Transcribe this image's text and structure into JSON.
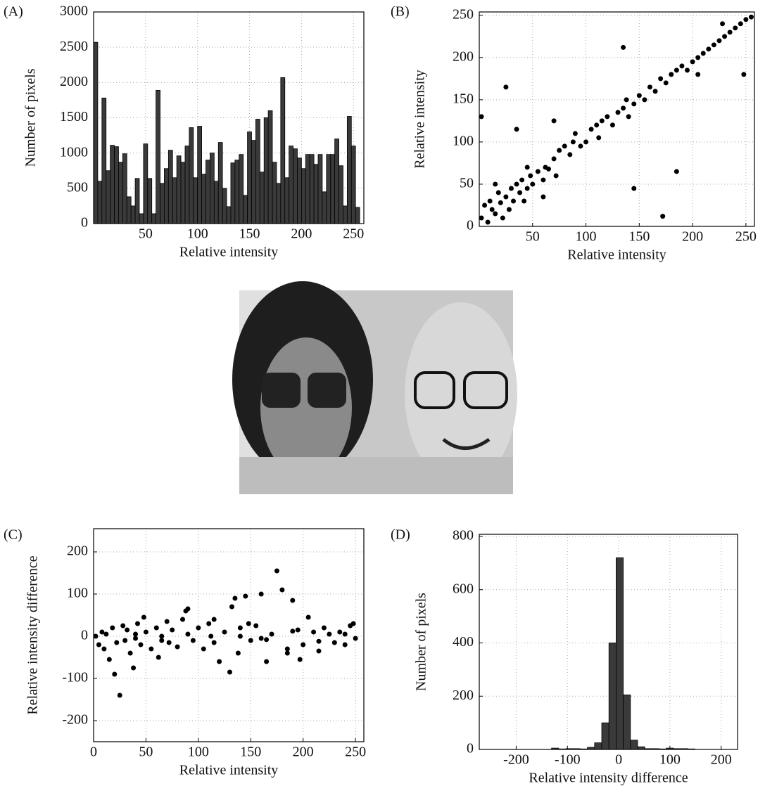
{
  "chart_data": [
    {
      "type": "histogram",
      "panel_label": "(A)",
      "xlabel": "Relative intensity",
      "ylabel": "Number of pixels",
      "bins": [
        0,
        4,
        8,
        12,
        16,
        20,
        24,
        28,
        32,
        36,
        40,
        44,
        48,
        52,
        56,
        60,
        64,
        68,
        72,
        76,
        80,
        84,
        88,
        92,
        96,
        100,
        104,
        108,
        112,
        116,
        120,
        124,
        128,
        132,
        136,
        140,
        144,
        148,
        152,
        156,
        160,
        164,
        168,
        172,
        176,
        180,
        184,
        188,
        192,
        196,
        200,
        204,
        208,
        212,
        216,
        220,
        224,
        228,
        232,
        236,
        240,
        244,
        248,
        252,
        256
      ],
      "values": [
        2570,
        600,
        1780,
        750,
        1110,
        1090,
        870,
        990,
        380,
        250,
        640,
        140,
        1130,
        640,
        140,
        1890,
        570,
        780,
        1040,
        650,
        960,
        870,
        1100,
        1360,
        650,
        1380,
        700,
        900,
        1000,
        600,
        1150,
        500,
        240,
        860,
        900,
        980,
        400,
        1300,
        1180,
        1480,
        730,
        1500,
        1600,
        870,
        570,
        2070,
        650,
        1100,
        1060,
        930,
        780,
        980,
        980,
        840,
        980,
        450,
        980,
        980,
        1200,
        820,
        250,
        1520,
        1100,
        230
      ],
      "color": "#3a3a3a",
      "xlim": [
        0,
        260
      ],
      "ylim": [
        0,
        3000
      ],
      "xticks": [
        50,
        100,
        150,
        200,
        250
      ],
      "yticks": [
        0,
        500,
        1000,
        1500,
        2000,
        2500,
        3000
      ],
      "grid": true
    },
    {
      "type": "scatter",
      "panel_label": "(B)",
      "xlabel": "Relative intensity",
      "ylabel": "Relative intensity",
      "x": [
        2,
        5,
        8,
        10,
        12,
        15,
        18,
        20,
        22,
        25,
        28,
        30,
        32,
        35,
        38,
        40,
        42,
        45,
        48,
        50,
        55,
        60,
        62,
        65,
        70,
        72,
        75,
        80,
        85,
        88,
        90,
        95,
        100,
        105,
        110,
        112,
        115,
        120,
        125,
        130,
        135,
        138,
        140,
        145,
        150,
        155,
        160,
        165,
        170,
        175,
        180,
        185,
        190,
        195,
        200,
        205,
        210,
        215,
        220,
        225,
        230,
        235,
        240,
        245,
        250,
        255,
        25,
        35,
        70,
        135,
        145,
        172,
        185,
        248,
        2,
        60,
        45,
        15,
        205,
        228
      ],
      "y": [
        10,
        25,
        5,
        30,
        20,
        15,
        40,
        28,
        10,
        35,
        20,
        45,
        30,
        50,
        40,
        55,
        30,
        45,
        60,
        50,
        65,
        55,
        70,
        68,
        80,
        60,
        90,
        95,
        85,
        100,
        110,
        95,
        100,
        115,
        120,
        105,
        125,
        130,
        120,
        135,
        140,
        150,
        130,
        145,
        155,
        150,
        165,
        160,
        175,
        170,
        180,
        185,
        190,
        185,
        195,
        200,
        205,
        210,
        215,
        220,
        225,
        230,
        235,
        240,
        245,
        248,
        165,
        115,
        125,
        212,
        45,
        12,
        65,
        180,
        130,
        35,
        70,
        50,
        180,
        240
      ],
      "color": "#000000",
      "xlim": [
        0,
        258
      ],
      "ylim": [
        0,
        254
      ],
      "xticks": [
        50,
        100,
        150,
        200,
        250
      ],
      "yticks": [
        0,
        50,
        100,
        150,
        200,
        250
      ],
      "grid": true
    },
    {
      "type": "scatter",
      "panel_label": "(C)",
      "xlabel": "Relative intensity",
      "ylabel": "Relative intensity difference",
      "x": [
        2,
        5,
        8,
        10,
        12,
        15,
        18,
        20,
        22,
        25,
        28,
        30,
        32,
        35,
        38,
        40,
        42,
        45,
        48,
        50,
        55,
        60,
        62,
        65,
        70,
        72,
        75,
        80,
        85,
        88,
        90,
        95,
        100,
        105,
        110,
        112,
        115,
        120,
        125,
        130,
        135,
        138,
        140,
        145,
        150,
        155,
        160,
        165,
        170,
        175,
        180,
        185,
        190,
        195,
        200,
        205,
        210,
        215,
        220,
        225,
        230,
        235,
        240,
        245,
        250,
        132,
        148,
        160,
        185,
        197,
        40,
        65,
        90,
        115,
        140,
        165,
        190,
        215,
        240,
        248
      ],
      "y": [
        0,
        -20,
        10,
        -30,
        5,
        -55,
        20,
        -90,
        -15,
        -140,
        25,
        -10,
        15,
        -40,
        -75,
        5,
        30,
        -20,
        45,
        10,
        -30,
        20,
        -50,
        0,
        35,
        -15,
        15,
        -25,
        40,
        60,
        65,
        -10,
        20,
        -30,
        30,
        0,
        40,
        -60,
        10,
        -85,
        90,
        -40,
        20,
        95,
        -10,
        25,
        100,
        -60,
        5,
        155,
        110,
        -30,
        85,
        15,
        -20,
        45,
        10,
        -35,
        20,
        5,
        -15,
        10,
        -20,
        25,
        -5,
        70,
        30,
        -5,
        -40,
        -55,
        -5,
        -10,
        5,
        -15,
        0,
        -8,
        12,
        -12,
        5,
        30
      ],
      "color": "#000000",
      "xlim": [
        0,
        258
      ],
      "ylim": [
        -250,
        255
      ],
      "xticks": [
        0,
        50,
        100,
        150,
        200,
        250
      ],
      "yticks": [
        -200,
        -100,
        0,
        100,
        200
      ],
      "grid": true
    },
    {
      "type": "histogram",
      "panel_label": "(D)",
      "xlabel": "Relative intensity difference",
      "ylabel": "Number of pixels",
      "bins": [
        -131,
        -117,
        -103,
        -89,
        -75,
        -61,
        -47,
        -33,
        -19,
        -5,
        9,
        23,
        37,
        51,
        65,
        79,
        93,
        107,
        121,
        135,
        149
      ],
      "values": [
        5,
        2,
        3,
        3,
        2,
        8,
        25,
        100,
        400,
        720,
        205,
        35,
        10,
        3,
        3,
        2,
        5,
        3,
        3,
        2
      ],
      "color": "#3a3a3a",
      "xlim": [
        -272,
        232
      ],
      "ylim": [
        0,
        808
      ],
      "xticks": [
        -200,
        -100,
        0,
        100,
        200
      ],
      "yticks": [
        0,
        200,
        400,
        600,
        800
      ],
      "grid": true
    }
  ]
}
